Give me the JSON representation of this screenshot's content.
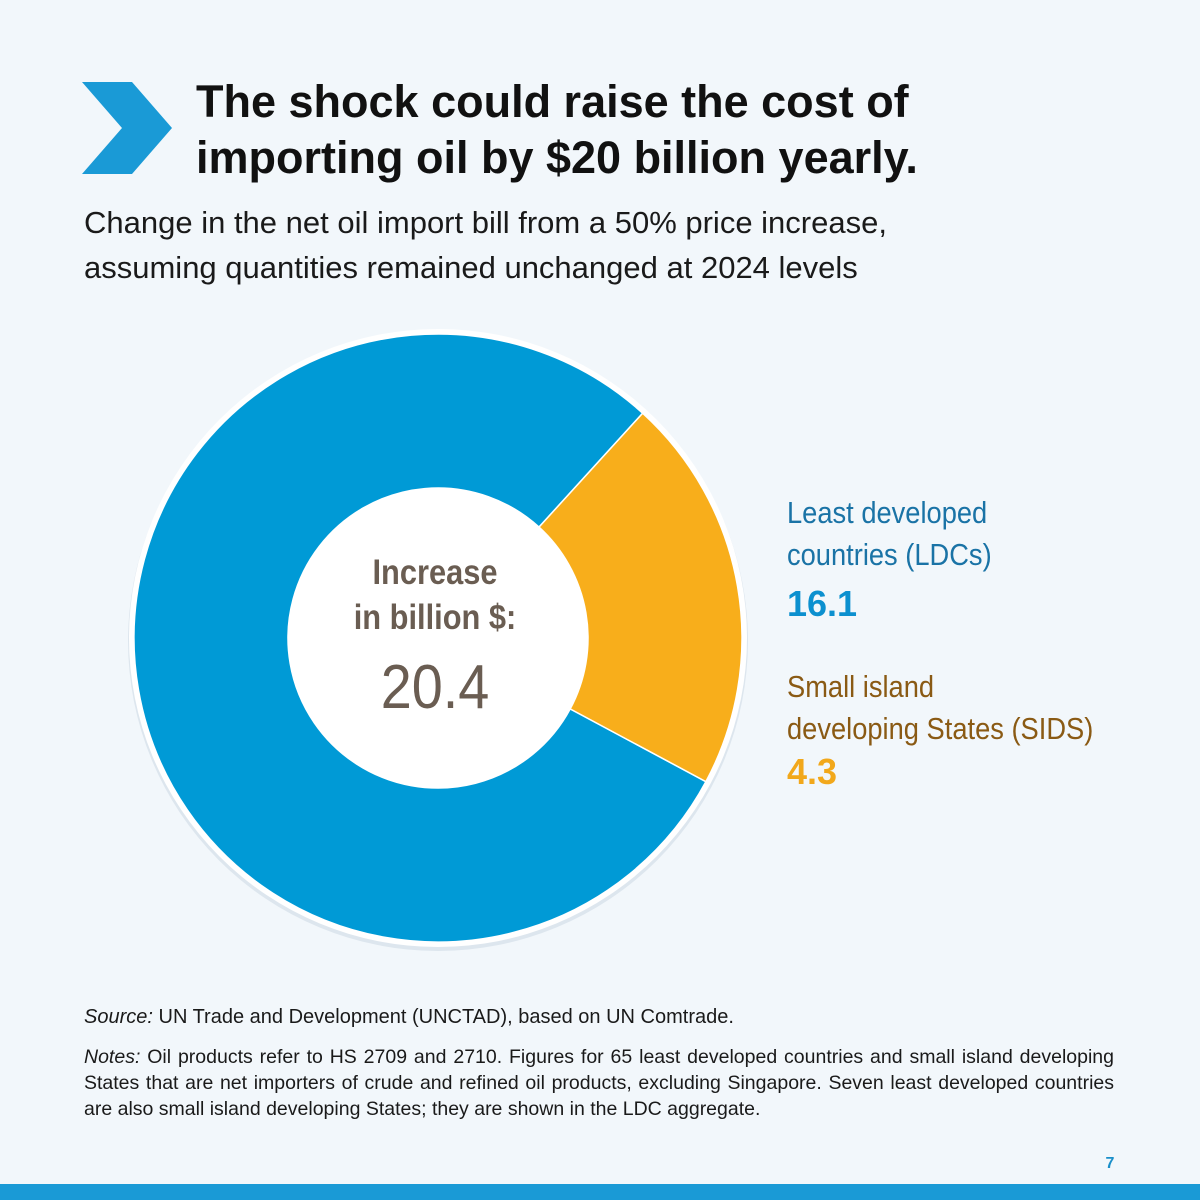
{
  "header": {
    "title": "The shock could raise the cost of\nimporting oil by $20 billion yearly.",
    "subtitle": "Change in the net oil import bill from a 50% price increase,\nassuming quantities remained unchanged at 2024 levels"
  },
  "colors": {
    "ldc": "#009ad6",
    "sids": "#f8ae1b",
    "accent": "#1a9ad6",
    "center_text": "#6a5d52",
    "background": "#f2f7fb"
  },
  "chart_data": {
    "type": "pie",
    "donut": true,
    "center_label": "Increase\nin billion $:",
    "center_value": "20.4",
    "total": 20.4,
    "legend_position": "right",
    "series": [
      {
        "name": "Least developed\ncountries (LDCs)",
        "label": "16.1",
        "value": 16.1,
        "color": "#009ad6"
      },
      {
        "name": "Small island\ndeveloping States (SIDS)",
        "label": "4.3",
        "value": 4.3,
        "color": "#f8ae1b"
      }
    ]
  },
  "footer": {
    "source_prefix": "Source:",
    "source_text": " UN Trade and Development (UNCTAD), based on UN Comtrade.",
    "notes_prefix": "Notes:",
    "notes_text": " Oil products refer to HS 2709 and 2710. Figures for 65 least developed countries and small island developing States that are net importers of crude and refined oil products, excluding Singapore. Seven least developed countries are also small island developing States; they are shown in the LDC aggregate.",
    "page_number": "7"
  },
  "icons": {
    "header_marker": "chevron-right-icon"
  }
}
